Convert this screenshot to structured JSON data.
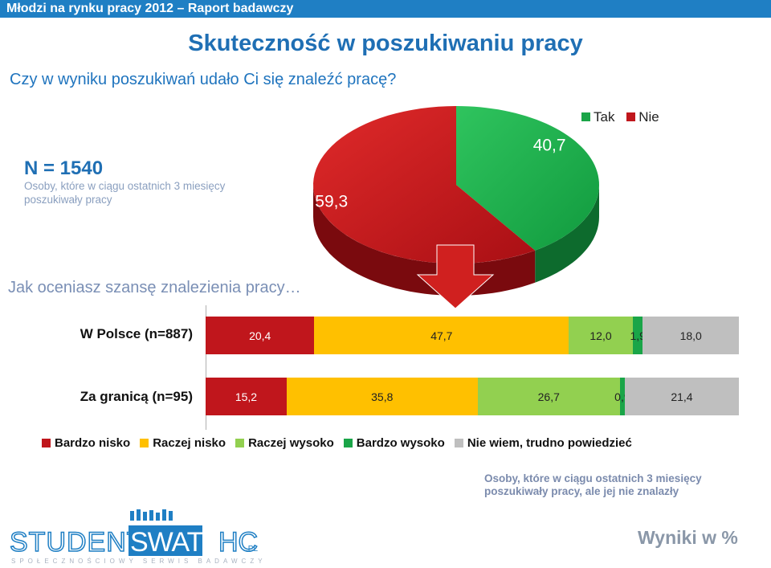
{
  "header": {
    "bar_title": "Młodzi na rynku pracy 2012 – Raport badawczy"
  },
  "title": "Skuteczność w poszukiwaniu pracy",
  "question1": "Czy w wyniku poszukiwań udało Ci się znaleźć pracę?",
  "sample": {
    "n": "N = 1540",
    "description": "Osoby, które w ciągu ostatnich 3 miesięcy poszukiwały pracy"
  },
  "question2": "Jak oceniasz szansę znalezienia pracy…",
  "note2": "Osoby, które w ciągu ostatnich 3 miesięcy poszukiwały pracy, ale jej nie znalazły",
  "footer_units": "Wyniki w %",
  "logo": {
    "left": "STUDENT",
    "box": "SWATCH",
    "suffix": ".PL",
    "tagline": "SPOŁECZNOŚCIOWY SERWIS BADAWCZY"
  },
  "colors": {
    "tak": "#1aa548",
    "nie": "#c0161c",
    "bardzo_nisko": "#c0161c",
    "raczej_nisko": "#ffc000",
    "raczej_wysoko": "#92d050",
    "bardzo_wysoko": "#1aa548",
    "nie_wiem": "#bfbfbf",
    "accent": "#1f7fc4"
  },
  "chart_data": [
    {
      "type": "pie",
      "labels": [
        "Tak",
        "Nie"
      ],
      "values": [
        40.7,
        59.3
      ],
      "value_labels": [
        "40,7",
        "59,3"
      ],
      "legend": [
        "Tak",
        "Nie"
      ],
      "legend_position": "top-right"
    },
    {
      "type": "bar",
      "orientation": "horizontal",
      "stacked": true,
      "categories": [
        "W Polsce (n=887)",
        "Za granicą (n=95)"
      ],
      "series": [
        {
          "name": "Bardzo nisko",
          "values": [
            20.4,
            15.2
          ],
          "labels": [
            "20,4",
            "15,2"
          ]
        },
        {
          "name": "Raczej nisko",
          "values": [
            47.7,
            35.8
          ],
          "labels": [
            "47,7",
            "35,8"
          ]
        },
        {
          "name": "Raczej wysoko",
          "values": [
            12.0,
            26.7
          ],
          "labels": [
            "12,0",
            "26,7"
          ]
        },
        {
          "name": "Bardzo wysoko",
          "values": [
            1.9,
            0.9
          ],
          "labels": [
            "1,9",
            "0,9"
          ]
        },
        {
          "name": "Nie wiem, trudno powiedzieć",
          "values": [
            18.0,
            21.4
          ],
          "labels": [
            "18,0",
            "21,4"
          ]
        }
      ],
      "legend_position": "bottom"
    }
  ]
}
